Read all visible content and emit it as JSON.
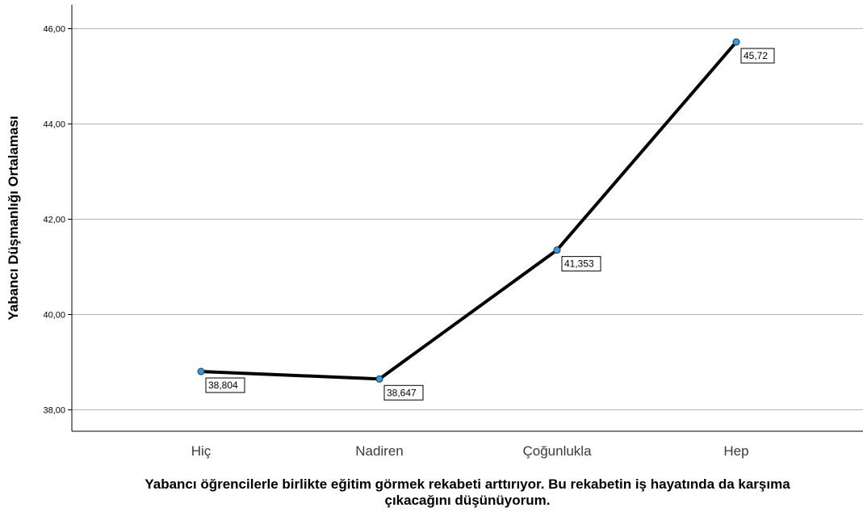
{
  "chart_data": {
    "type": "line",
    "categories": [
      "Hiç",
      "Nadiren",
      "Çoğunlukla",
      "Hep"
    ],
    "series": [
      {
        "values": [
          38.804,
          38.647,
          41.353,
          45.72
        ]
      }
    ],
    "data_labels": [
      "38,804",
      "38,647",
      "41,353",
      "45,72"
    ],
    "ylabel": "Yabancı Düşmanlığı Ortalaması",
    "xlabel_line1": "Yabancı öğrencilerle birlikte eğitim görmek rekabeti arttırıyor. Bu rekabetin iş hayatında da karşıma",
    "xlabel_line2": "çıkacağını düşünüyorum.",
    "yticks": [
      38,
      40,
      42,
      44,
      46
    ],
    "ytick_labels": [
      "38,00",
      "40,00",
      "42,00",
      "44,00",
      "46,00"
    ],
    "ylim": [
      37.55,
      46.5
    ],
    "grid": true,
    "line_color": "#000000",
    "marker_color": "#3a9ad9"
  }
}
